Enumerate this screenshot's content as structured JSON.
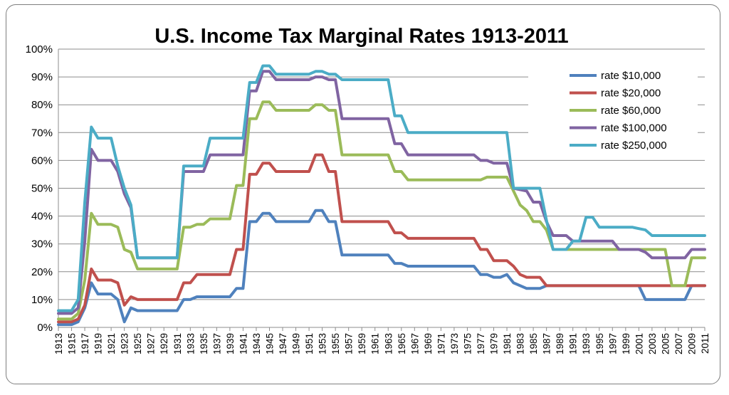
{
  "chart_data": {
    "type": "line",
    "title": "U.S. Income Tax Marginal Rates 1913-2011",
    "xlabel": "",
    "ylabel": "",
    "ylim": [
      0,
      100
    ],
    "y_ticks": [
      0,
      10,
      20,
      30,
      40,
      50,
      60,
      70,
      80,
      90,
      100
    ],
    "y_tick_suffix": "%",
    "x_range": [
      1913,
      2011
    ],
    "x_tick_step": 2,
    "grid": true,
    "legend_position": "top-right",
    "series": [
      {
        "name": "rate $10,000",
        "color": "#4f81bd",
        "points": [
          [
            1913,
            1
          ],
          [
            1915,
            1
          ],
          [
            1916,
            2
          ],
          [
            1917,
            7
          ],
          [
            1918,
            16
          ],
          [
            1919,
            12
          ],
          [
            1921,
            12
          ],
          [
            1922,
            10
          ],
          [
            1923,
            2
          ],
          [
            1924,
            7
          ],
          [
            1925,
            6
          ],
          [
            1931,
            6
          ],
          [
            1932,
            10
          ],
          [
            1933,
            10
          ],
          [
            1934,
            11
          ],
          [
            1939,
            11
          ],
          [
            1940,
            14
          ],
          [
            1941,
            14
          ],
          [
            1942,
            38
          ],
          [
            1943,
            38
          ],
          [
            1944,
            41
          ],
          [
            1945,
            41
          ],
          [
            1946,
            38
          ],
          [
            1951,
            38
          ],
          [
            1952,
            42
          ],
          [
            1953,
            42
          ],
          [
            1954,
            38
          ],
          [
            1955,
            38
          ],
          [
            1956,
            26
          ],
          [
            1963,
            26
          ],
          [
            1964,
            23
          ],
          [
            1965,
            23
          ],
          [
            1966,
            22
          ],
          [
            1976,
            22
          ],
          [
            1977,
            19
          ],
          [
            1978,
            19
          ],
          [
            1979,
            18
          ],
          [
            1980,
            18
          ],
          [
            1981,
            19
          ],
          [
            1982,
            16
          ],
          [
            1984,
            14
          ],
          [
            1986,
            14
          ],
          [
            1987,
            15
          ],
          [
            2001,
            15
          ],
          [
            2002,
            10
          ],
          [
            2008,
            10
          ],
          [
            2009,
            15
          ],
          [
            2011,
            15
          ]
        ]
      },
      {
        "name": "rate $20,000",
        "color": "#c0504d",
        "points": [
          [
            1913,
            2
          ],
          [
            1915,
            2
          ],
          [
            1916,
            3
          ],
          [
            1917,
            8
          ],
          [
            1918,
            21
          ],
          [
            1919,
            17
          ],
          [
            1921,
            17
          ],
          [
            1922,
            16
          ],
          [
            1923,
            8
          ],
          [
            1924,
            11
          ],
          [
            1925,
            10
          ],
          [
            1931,
            10
          ],
          [
            1932,
            16
          ],
          [
            1933,
            16
          ],
          [
            1934,
            19
          ],
          [
            1939,
            19
          ],
          [
            1940,
            28
          ],
          [
            1941,
            28
          ],
          [
            1942,
            55
          ],
          [
            1943,
            55
          ],
          [
            1944,
            59
          ],
          [
            1945,
            59
          ],
          [
            1946,
            56
          ],
          [
            1951,
            56
          ],
          [
            1952,
            62
          ],
          [
            1953,
            62
          ],
          [
            1954,
            56
          ],
          [
            1955,
            56
          ],
          [
            1956,
            38
          ],
          [
            1963,
            38
          ],
          [
            1964,
            34
          ],
          [
            1965,
            34
          ],
          [
            1966,
            32
          ],
          [
            1976,
            32
          ],
          [
            1977,
            28
          ],
          [
            1978,
            28
          ],
          [
            1979,
            24
          ],
          [
            1981,
            24
          ],
          [
            1982,
            22
          ],
          [
            1983,
            19
          ],
          [
            1984,
            18
          ],
          [
            1986,
            18
          ],
          [
            1987,
            15
          ],
          [
            2011,
            15
          ]
        ]
      },
      {
        "name": "rate $60,000",
        "color": "#9bbb59",
        "points": [
          [
            1913,
            3
          ],
          [
            1915,
            3
          ],
          [
            1916,
            5
          ],
          [
            1917,
            17
          ],
          [
            1918,
            41
          ],
          [
            1919,
            37
          ],
          [
            1921,
            37
          ],
          [
            1922,
            36
          ],
          [
            1923,
            28
          ],
          [
            1924,
            27
          ],
          [
            1925,
            21
          ],
          [
            1931,
            21
          ],
          [
            1932,
            36
          ],
          [
            1933,
            36
          ],
          [
            1934,
            37
          ],
          [
            1935,
            37
          ],
          [
            1936,
            39
          ],
          [
            1939,
            39
          ],
          [
            1940,
            51
          ],
          [
            1941,
            51
          ],
          [
            1942,
            75
          ],
          [
            1943,
            75
          ],
          [
            1944,
            81
          ],
          [
            1945,
            81
          ],
          [
            1946,
            78
          ],
          [
            1951,
            78
          ],
          [
            1952,
            80
          ],
          [
            1953,
            80
          ],
          [
            1954,
            78
          ],
          [
            1955,
            78
          ],
          [
            1956,
            62
          ],
          [
            1963,
            62
          ],
          [
            1964,
            56
          ],
          [
            1965,
            56
          ],
          [
            1966,
            53
          ],
          [
            1977,
            53
          ],
          [
            1978,
            54
          ],
          [
            1981,
            54
          ],
          [
            1982,
            49
          ],
          [
            1983,
            44
          ],
          [
            1984,
            42
          ],
          [
            1985,
            38
          ],
          [
            1986,
            38
          ],
          [
            1987,
            35
          ],
          [
            1988,
            28
          ],
          [
            1998,
            28
          ],
          [
            2005,
            28
          ],
          [
            2006,
            15
          ],
          [
            2008,
            15
          ],
          [
            2009,
            25
          ],
          [
            2011,
            25
          ]
        ]
      },
      {
        "name": "rate $100,000",
        "color": "#8064a2",
        "points": [
          [
            1913,
            5
          ],
          [
            1915,
            5
          ],
          [
            1916,
            7
          ],
          [
            1917,
            31
          ],
          [
            1918,
            64
          ],
          [
            1919,
            60
          ],
          [
            1921,
            60
          ],
          [
            1922,
            56
          ],
          [
            1923,
            48
          ],
          [
            1924,
            43
          ],
          [
            1925,
            25
          ],
          [
            1931,
            25
          ],
          [
            1932,
            56
          ],
          [
            1935,
            56
          ],
          [
            1936,
            62
          ],
          [
            1941,
            62
          ],
          [
            1942,
            85
          ],
          [
            1943,
            85
          ],
          [
            1944,
            92
          ],
          [
            1945,
            92
          ],
          [
            1946,
            89
          ],
          [
            1951,
            89
          ],
          [
            1952,
            90
          ],
          [
            1953,
            90
          ],
          [
            1954,
            89
          ],
          [
            1955,
            89
          ],
          [
            1956,
            75
          ],
          [
            1963,
            75
          ],
          [
            1964,
            66
          ],
          [
            1965,
            66
          ],
          [
            1966,
            62
          ],
          [
            1976,
            62
          ],
          [
            1977,
            60
          ],
          [
            1978,
            60
          ],
          [
            1979,
            59
          ],
          [
            1981,
            59
          ],
          [
            1982,
            50
          ],
          [
            1984,
            49
          ],
          [
            1985,
            45
          ],
          [
            1986,
            45
          ],
          [
            1987,
            38
          ],
          [
            1988,
            33
          ],
          [
            1990,
            33
          ],
          [
            1991,
            31
          ],
          [
            1997,
            31
          ],
          [
            1998,
            28
          ],
          [
            2000,
            28
          ],
          [
            2001,
            28
          ],
          [
            2002,
            27
          ],
          [
            2003,
            25
          ],
          [
            2008,
            25
          ],
          [
            2009,
            28
          ],
          [
            2011,
            28
          ]
        ]
      },
      {
        "name": "rate $250,000",
        "color": "#4bacc6",
        "points": [
          [
            1913,
            6
          ],
          [
            1915,
            6
          ],
          [
            1916,
            10
          ],
          [
            1917,
            45
          ],
          [
            1918,
            72
          ],
          [
            1919,
            68
          ],
          [
            1921,
            68
          ],
          [
            1922,
            58
          ],
          [
            1923,
            50
          ],
          [
            1924,
            44
          ],
          [
            1925,
            25
          ],
          [
            1931,
            25
          ],
          [
            1932,
            58
          ],
          [
            1935,
            58
          ],
          [
            1936,
            68
          ],
          [
            1941,
            68
          ],
          [
            1942,
            88
          ],
          [
            1943,
            88
          ],
          [
            1944,
            94
          ],
          [
            1945,
            94
          ],
          [
            1946,
            91
          ],
          [
            1951,
            91
          ],
          [
            1952,
            92
          ],
          [
            1953,
            92
          ],
          [
            1954,
            91
          ],
          [
            1955,
            91
          ],
          [
            1956,
            89
          ],
          [
            1963,
            89
          ],
          [
            1964,
            76
          ],
          [
            1965,
            76
          ],
          [
            1966,
            70
          ],
          [
            1981,
            70
          ],
          [
            1982,
            50
          ],
          [
            1986,
            50
          ],
          [
            1987,
            38.5
          ],
          [
            1988,
            28
          ],
          [
            1990,
            28
          ],
          [
            1991,
            31
          ],
          [
            1992,
            31
          ],
          [
            1993,
            39.6
          ],
          [
            1994,
            39.6
          ],
          [
            1995,
            36
          ],
          [
            2000,
            36
          ],
          [
            2001,
            35.5
          ],
          [
            2002,
            35
          ],
          [
            2003,
            33
          ],
          [
            2011,
            33
          ]
        ]
      }
    ]
  }
}
